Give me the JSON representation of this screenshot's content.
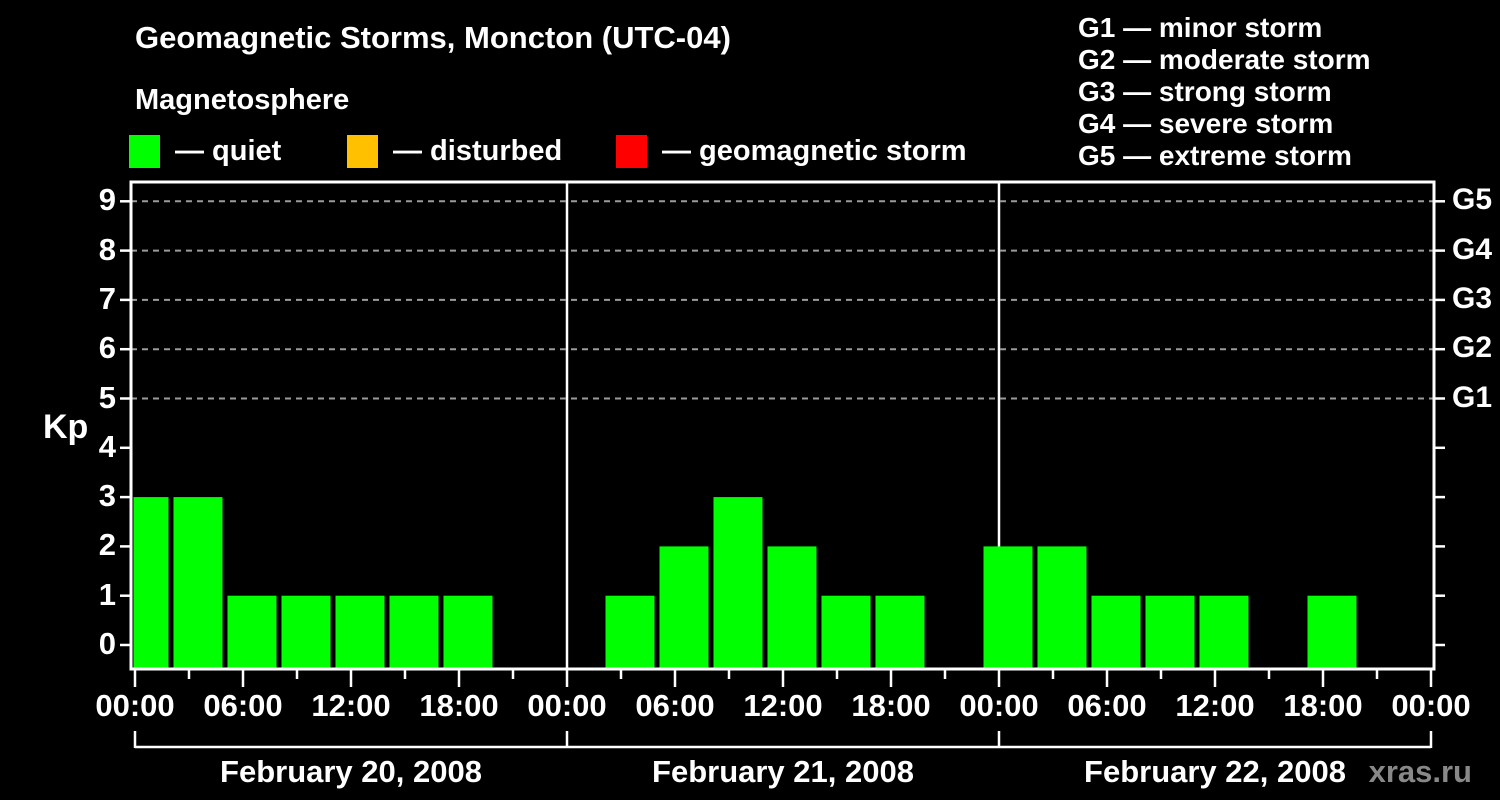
{
  "header": {
    "title": "Geomagnetic Storms, Moncton (UTC-04)",
    "subtitle": "Magnetosphere"
  },
  "legend": {
    "items": [
      {
        "name": "quiet",
        "label": "— quiet",
        "color": "#00ff00"
      },
      {
        "name": "disturbed",
        "label": "— disturbed",
        "color": "#ffc000"
      },
      {
        "name": "geomagnetic-storm",
        "label": "— geomagnetic storm",
        "color": "#ff0000"
      }
    ]
  },
  "g_scale_legend": {
    "lines": [
      "G1 — minor storm",
      "G2 — moderate storm",
      "G3 — strong storm",
      "G4 — severe storm",
      "G5 — extreme storm"
    ]
  },
  "watermark": "xras.ru",
  "chart_data": {
    "type": "bar",
    "title": "Geomagnetic Storms, Moncton (UTC-04)",
    "ylabel": "Kp",
    "ylim": [
      0,
      9
    ],
    "y_ticks": [
      0,
      1,
      2,
      3,
      4,
      5,
      6,
      7,
      8,
      9
    ],
    "gridlines_at": [
      5,
      6,
      7,
      8,
      9
    ],
    "right_axis_labels": [
      {
        "kp": 5,
        "label": "G1"
      },
      {
        "kp": 6,
        "label": "G2"
      },
      {
        "kp": 7,
        "label": "G3"
      },
      {
        "kp": 8,
        "label": "G4"
      },
      {
        "kp": 9,
        "label": "G5"
      }
    ],
    "hours_per_bar": 3,
    "x_tick_labels_per_day": [
      "00:00",
      "06:00",
      "12:00",
      "18:00"
    ],
    "final_tick_label": "00:00",
    "bar_color": "#00ff00",
    "grid_color": "#9b9b9b",
    "axis_color": "#ffffff",
    "days": [
      {
        "date": "February 20, 2008",
        "kp_values": [
          3,
          3,
          1,
          1,
          1,
          1,
          1,
          0
        ]
      },
      {
        "date": "February 21, 2008",
        "kp_values": [
          0,
          1,
          2,
          3,
          2,
          1,
          1,
          0
        ]
      },
      {
        "date": "February 22, 2008",
        "kp_values": [
          2,
          2,
          1,
          1,
          1,
          0,
          1,
          0
        ]
      }
    ]
  }
}
